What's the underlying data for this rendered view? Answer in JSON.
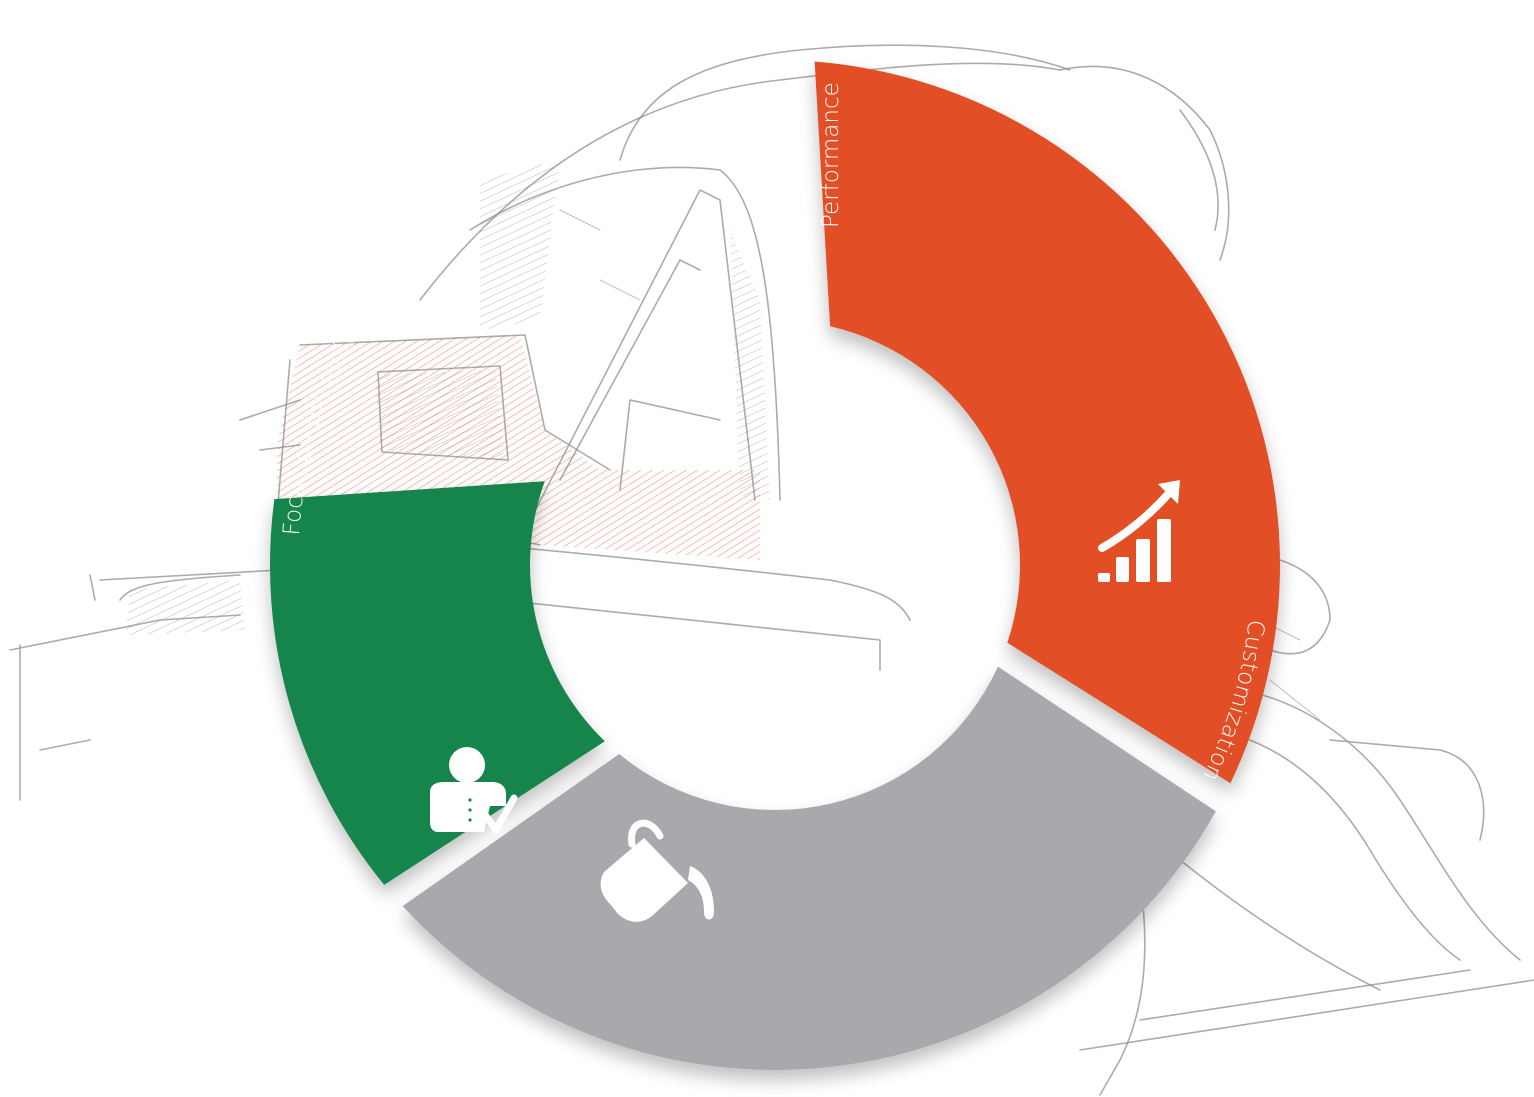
{
  "diagram": {
    "segments": [
      {
        "id": "performance",
        "label": "Performance",
        "color": "#e24f25",
        "icon": "bar-chart-growth-icon"
      },
      {
        "id": "customization",
        "label": "Customization",
        "color": "#a8a9ad",
        "icon": "paint-bucket-icon"
      },
      {
        "id": "individual",
        "label": "Focus on the individual",
        "color": "#13854b",
        "icon": "user-check-icon"
      }
    ]
  }
}
